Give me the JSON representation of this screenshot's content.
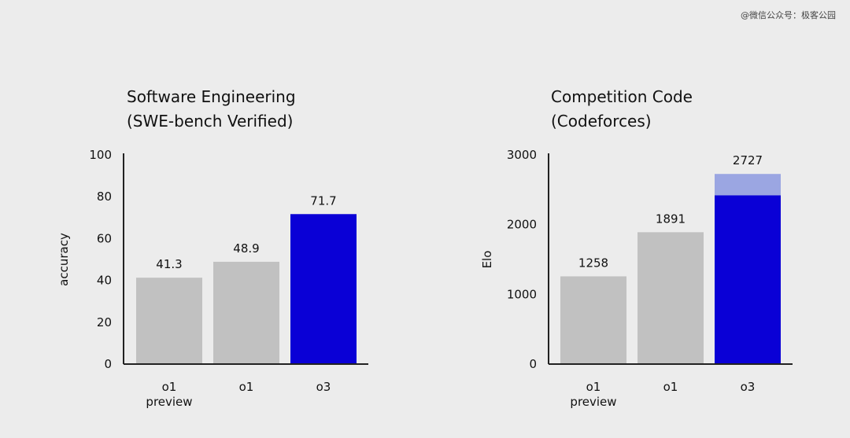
{
  "watermark": "@微信公众号：极客公园",
  "colors": {
    "background": "#ececec",
    "gray_bar": "#c1c1c1",
    "blue_bar": "#0a00d6",
    "light_blue_bar": "#9ba6e2",
    "axis": "#222222",
    "text": "#111111"
  },
  "chart_data": [
    {
      "type": "bar",
      "title_lines": [
        "Software Engineering",
        "(SWE-bench Verified)"
      ],
      "ylabel": "accuracy",
      "ylim": [
        0,
        100
      ],
      "yticks": [
        0,
        20,
        40,
        60,
        80,
        100
      ],
      "categories": [
        [
          "o1",
          "preview"
        ],
        [
          "o1"
        ],
        [
          "o3"
        ]
      ],
      "values": [
        41.3,
        48.9,
        71.7
      ],
      "value_labels": [
        "41.3",
        "48.9",
        "71.7"
      ],
      "bar_colors": [
        "#c1c1c1",
        "#c1c1c1",
        "#0a00d6"
      ],
      "highlight": null
    },
    {
      "type": "bar",
      "title_lines": [
        "Competition Code",
        "(Codeforces)"
      ],
      "ylabel": "Elo",
      "ylim": [
        0,
        3000
      ],
      "yticks": [
        0,
        1000,
        2000,
        3000
      ],
      "categories": [
        [
          "o1",
          "preview"
        ],
        [
          "o1"
        ],
        [
          "o3"
        ]
      ],
      "values": [
        1258,
        1891,
        2727
      ],
      "value_labels": [
        "1258",
        "1891",
        "2727"
      ],
      "bar_colors": [
        "#c1c1c1",
        "#c1c1c1",
        "#0a00d6"
      ],
      "highlight": {
        "index": 2,
        "solid_to": 2420,
        "light_color": "#9ba6e2"
      }
    }
  ]
}
